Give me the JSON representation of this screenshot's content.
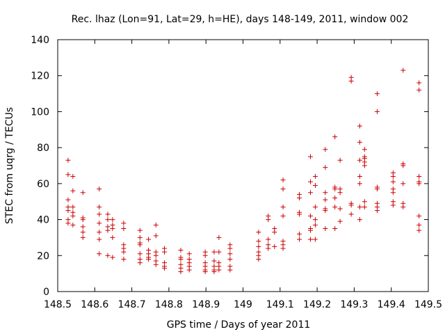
{
  "chart_data": {
    "type": "scatter",
    "title": "Rec. lhaz (Lon=91, Lat=29, h=HE), days 148-149, 2011, window 002",
    "xlabel": "GPS time / Days of year 2011",
    "ylabel": "STEC from uqrg / TECUs",
    "xlim": [
      148.5,
      149.5
    ],
    "ylim": [
      0,
      140
    ],
    "xticks": [
      148.5,
      148.6,
      148.7,
      148.8,
      148.9,
      149.0,
      149.1,
      149.2,
      149.3,
      149.4,
      149.5
    ],
    "xtick_labels": [
      "148.5",
      "148.6",
      "148.7",
      "148.8",
      "148.9",
      "149",
      "149.1",
      "149.2",
      "149.3",
      "149.4",
      "149.5"
    ],
    "yticks": [
      0,
      20,
      40,
      60,
      80,
      100,
      120,
      140
    ],
    "ytick_labels": [
      "0",
      "20",
      "40",
      "60",
      "80",
      "100",
      "120",
      "140"
    ],
    "grid": false,
    "legend": "none",
    "marker": "plus",
    "color": "#cc0000",
    "points": [
      [
        148.528,
        73
      ],
      [
        148.528,
        65
      ],
      [
        148.528,
        51
      ],
      [
        148.528,
        47
      ],
      [
        148.528,
        45
      ],
      [
        148.528,
        40
      ],
      [
        148.528,
        38
      ],
      [
        148.541,
        64
      ],
      [
        148.541,
        56
      ],
      [
        148.541,
        47
      ],
      [
        148.541,
        44
      ],
      [
        148.541,
        42
      ],
      [
        148.541,
        37
      ],
      [
        148.568,
        55
      ],
      [
        148.568,
        41
      ],
      [
        148.568,
        40
      ],
      [
        148.568,
        36
      ],
      [
        148.568,
        33
      ],
      [
        148.568,
        30
      ],
      [
        148.612,
        57
      ],
      [
        148.612,
        47
      ],
      [
        148.612,
        43
      ],
      [
        148.612,
        38
      ],
      [
        148.612,
        33
      ],
      [
        148.612,
        29
      ],
      [
        148.612,
        21
      ],
      [
        148.635,
        43
      ],
      [
        148.635,
        40
      ],
      [
        148.635,
        36
      ],
      [
        148.635,
        34
      ],
      [
        148.635,
        20
      ],
      [
        148.648,
        40
      ],
      [
        148.648,
        37
      ],
      [
        148.648,
        35
      ],
      [
        148.648,
        30
      ],
      [
        148.648,
        19
      ],
      [
        148.678,
        38
      ],
      [
        148.678,
        35
      ],
      [
        148.678,
        26
      ],
      [
        148.678,
        24
      ],
      [
        148.678,
        22
      ],
      [
        148.678,
        18
      ],
      [
        148.722,
        34
      ],
      [
        148.722,
        30
      ],
      [
        148.722,
        27
      ],
      [
        148.722,
        26
      ],
      [
        148.722,
        21
      ],
      [
        148.722,
        18
      ],
      [
        148.722,
        16
      ],
      [
        148.745,
        29
      ],
      [
        148.745,
        23
      ],
      [
        148.745,
        21
      ],
      [
        148.745,
        19
      ],
      [
        148.745,
        18
      ],
      [
        148.765,
        37
      ],
      [
        148.765,
        31
      ],
      [
        148.765,
        22
      ],
      [
        148.765,
        20
      ],
      [
        148.765,
        17
      ],
      [
        148.765,
        15
      ],
      [
        148.788,
        24
      ],
      [
        148.788,
        22
      ],
      [
        148.788,
        16
      ],
      [
        148.788,
        14
      ],
      [
        148.788,
        13
      ],
      [
        148.832,
        23
      ],
      [
        148.832,
        19
      ],
      [
        148.832,
        18
      ],
      [
        148.832,
        15
      ],
      [
        148.832,
        13
      ],
      [
        148.832,
        11
      ],
      [
        148.855,
        21
      ],
      [
        148.855,
        18
      ],
      [
        148.855,
        16
      ],
      [
        148.855,
        14
      ],
      [
        148.855,
        12
      ],
      [
        148.898,
        22
      ],
      [
        148.898,
        20
      ],
      [
        148.898,
        16
      ],
      [
        148.898,
        14
      ],
      [
        148.898,
        12
      ],
      [
        148.898,
        11
      ],
      [
        148.922,
        22
      ],
      [
        148.922,
        17
      ],
      [
        148.922,
        14
      ],
      [
        148.922,
        12
      ],
      [
        148.922,
        11
      ],
      [
        148.935,
        30
      ],
      [
        148.935,
        22
      ],
      [
        148.935,
        16
      ],
      [
        148.935,
        14
      ],
      [
        148.935,
        12
      ],
      [
        148.965,
        26
      ],
      [
        148.965,
        24
      ],
      [
        148.965,
        21
      ],
      [
        148.965,
        18
      ],
      [
        148.965,
        14
      ],
      [
        148.965,
        12
      ],
      [
        149.042,
        33
      ],
      [
        149.042,
        28
      ],
      [
        149.042,
        25
      ],
      [
        149.042,
        22
      ],
      [
        149.042,
        20
      ],
      [
        149.042,
        18
      ],
      [
        149.068,
        42
      ],
      [
        149.068,
        40
      ],
      [
        149.068,
        29
      ],
      [
        149.068,
        26
      ],
      [
        149.068,
        24
      ],
      [
        149.085,
        35
      ],
      [
        149.085,
        33
      ],
      [
        149.085,
        25
      ],
      [
        149.108,
        62
      ],
      [
        149.108,
        57
      ],
      [
        149.108,
        47
      ],
      [
        149.108,
        42
      ],
      [
        149.108,
        28
      ],
      [
        149.108,
        26
      ],
      [
        149.108,
        24
      ],
      [
        149.152,
        54
      ],
      [
        149.152,
        52
      ],
      [
        149.152,
        44
      ],
      [
        149.152,
        43
      ],
      [
        149.152,
        32
      ],
      [
        149.152,
        29
      ],
      [
        149.182,
        75
      ],
      [
        149.182,
        61
      ],
      [
        149.182,
        55
      ],
      [
        149.182,
        42
      ],
      [
        149.182,
        35
      ],
      [
        149.182,
        34
      ],
      [
        149.182,
        29
      ],
      [
        149.195,
        64
      ],
      [
        149.195,
        59
      ],
      [
        149.195,
        47
      ],
      [
        149.195,
        40
      ],
      [
        149.195,
        37
      ],
      [
        149.195,
        29
      ],
      [
        149.222,
        79
      ],
      [
        149.222,
        69
      ],
      [
        149.222,
        55
      ],
      [
        149.222,
        51
      ],
      [
        149.222,
        46
      ],
      [
        149.222,
        45
      ],
      [
        149.222,
        35
      ],
      [
        149.248,
        86
      ],
      [
        149.248,
        58
      ],
      [
        149.248,
        57
      ],
      [
        149.248,
        52
      ],
      [
        149.248,
        47
      ],
      [
        149.248,
        35
      ],
      [
        149.262,
        73
      ],
      [
        149.262,
        57
      ],
      [
        149.262,
        55
      ],
      [
        149.262,
        46
      ],
      [
        149.262,
        39
      ],
      [
        149.292,
        119
      ],
      [
        149.292,
        117
      ],
      [
        149.292,
        49
      ],
      [
        149.292,
        48
      ],
      [
        149.292,
        43
      ],
      [
        149.315,
        92
      ],
      [
        149.315,
        83
      ],
      [
        149.315,
        73
      ],
      [
        149.315,
        64
      ],
      [
        149.315,
        60
      ],
      [
        149.315,
        47
      ],
      [
        149.315,
        40
      ],
      [
        149.328,
        79
      ],
      [
        149.328,
        75
      ],
      [
        149.328,
        74
      ],
      [
        149.328,
        72
      ],
      [
        149.328,
        70
      ],
      [
        149.328,
        50
      ],
      [
        149.328,
        47
      ],
      [
        149.362,
        110
      ],
      [
        149.362,
        100
      ],
      [
        149.362,
        58
      ],
      [
        149.362,
        57
      ],
      [
        149.362,
        49
      ],
      [
        149.362,
        47
      ],
      [
        149.362,
        45
      ],
      [
        149.405,
        66
      ],
      [
        149.405,
        64
      ],
      [
        149.405,
        61
      ],
      [
        149.405,
        57
      ],
      [
        149.405,
        55
      ],
      [
        149.405,
        50
      ],
      [
        149.405,
        48
      ],
      [
        149.432,
        123
      ],
      [
        149.432,
        71
      ],
      [
        149.432,
        70
      ],
      [
        149.432,
        60
      ],
      [
        149.432,
        49
      ],
      [
        149.432,
        47
      ],
      [
        149.475,
        116
      ],
      [
        149.475,
        112
      ],
      [
        149.475,
        64
      ],
      [
        149.475,
        61
      ],
      [
        149.475,
        60
      ],
      [
        149.475,
        42
      ],
      [
        149.475,
        37
      ],
      [
        149.475,
        34
      ]
    ]
  }
}
